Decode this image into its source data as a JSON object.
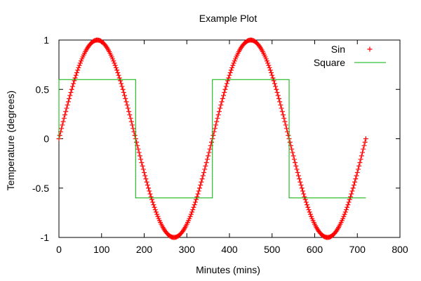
{
  "chart_data": {
    "type": "line",
    "title": "Example Plot",
    "xlabel": "Minutes (mins)",
    "ylabel": "Temperature (degrees)",
    "xlim": [
      0,
      800
    ],
    "ylim": [
      -1,
      1
    ],
    "xticks": [
      0,
      100,
      200,
      300,
      400,
      500,
      600,
      700,
      800
    ],
    "yticks": [
      -1,
      -0.5,
      0,
      0.5,
      1
    ],
    "xtick_labels": [
      "0",
      "100",
      "200",
      "300",
      "400",
      "500",
      "600",
      "700",
      "800"
    ],
    "ytick_labels": [
      "-1",
      "-0.5",
      "0",
      "0.5",
      "1"
    ],
    "grid": false,
    "legend_position": "top-right",
    "series": [
      {
        "name": "Sin",
        "style": "points",
        "marker": "+",
        "color": "#ff0000",
        "function": "sin(x degrees)",
        "x_range": [
          0,
          720
        ],
        "x_step": 2
      },
      {
        "name": "Square",
        "style": "line",
        "color": "#00b000",
        "x": [
          0,
          0,
          180,
          180,
          360,
          360,
          540,
          540,
          720
        ],
        "y": [
          0,
          0.6,
          0.6,
          -0.6,
          -0.6,
          0.6,
          0.6,
          -0.6,
          -0.6
        ]
      }
    ]
  }
}
